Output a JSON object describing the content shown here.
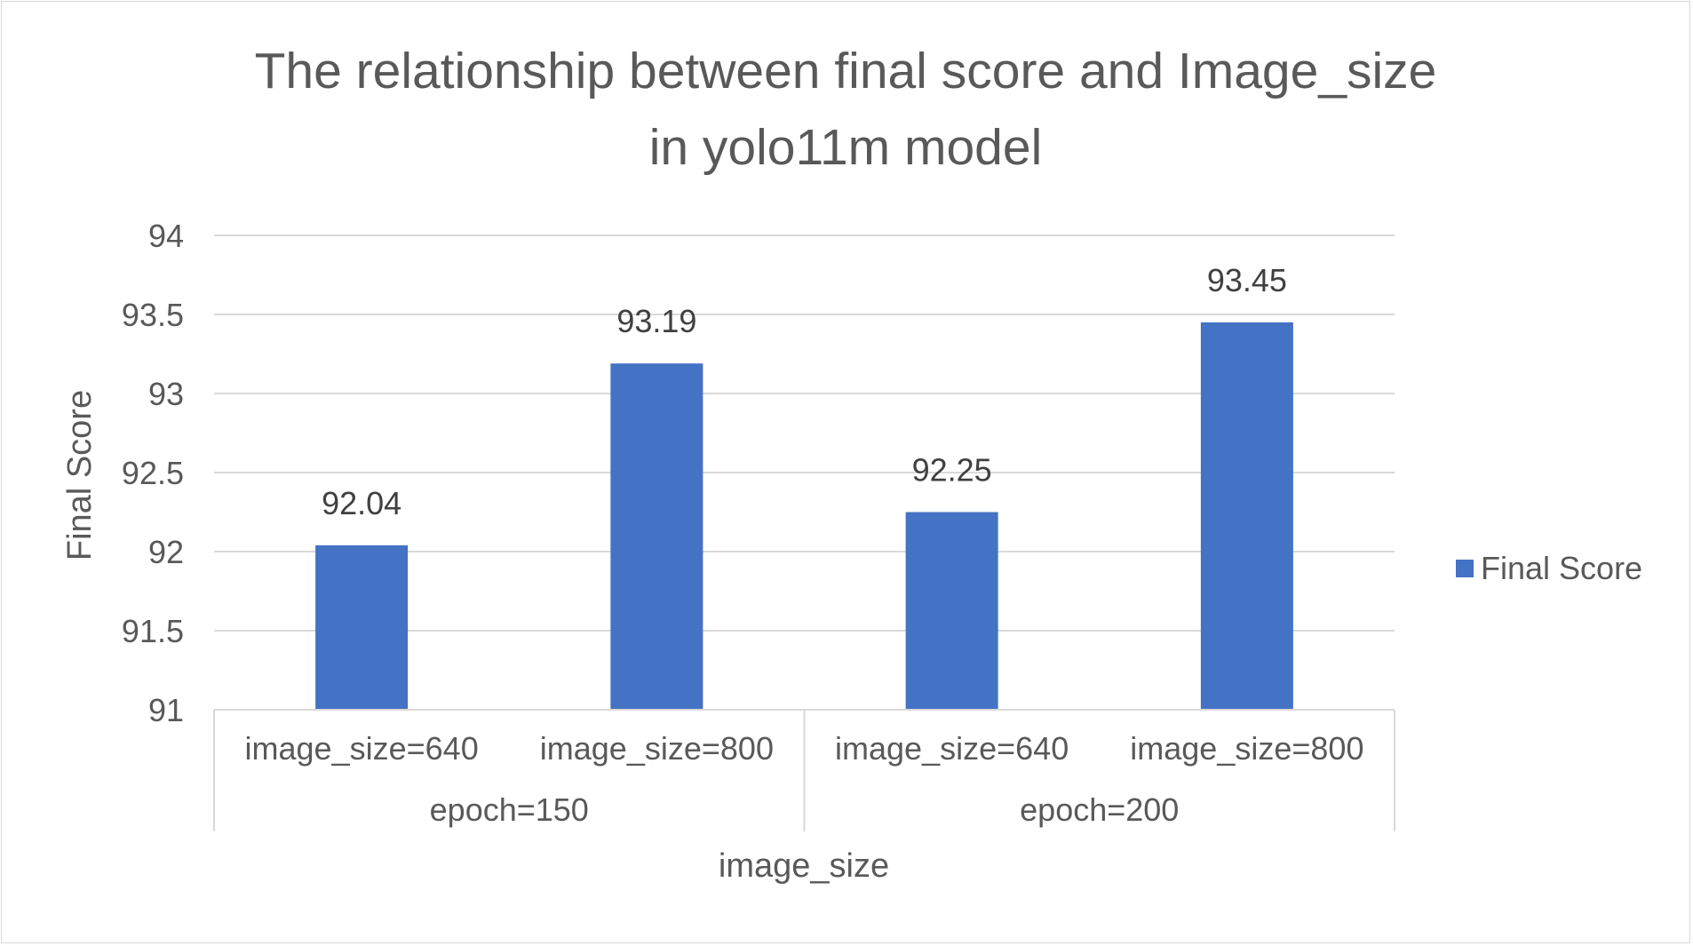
{
  "chart_data": {
    "type": "bar",
    "title": "The relationship between final score and Image_size in yolo11m model",
    "title_lines": [
      "The relationship between final score and Image_size",
      "in yolo11m model"
    ],
    "xlabel": "image_size",
    "ylabel": "Final Score",
    "ylim": [
      91,
      94
    ],
    "yticks": [
      "91",
      "91.5",
      "92",
      "92.5",
      "93",
      "93.5",
      "94"
    ],
    "ytick_values": [
      91,
      91.5,
      92,
      92.5,
      93,
      93.5,
      94
    ],
    "groups": [
      {
        "label": "epoch=150",
        "categories": [
          "image_size=640",
          "image_size=800"
        ]
      },
      {
        "label": "epoch=200",
        "categories": [
          "image_size=640",
          "image_size=800"
        ]
      }
    ],
    "categories": [
      "image_size=640",
      "image_size=800",
      "image_size=640",
      "image_size=800"
    ],
    "series": [
      {
        "name": "Final Score",
        "color": "#4472c4",
        "values": [
          92.04,
          93.19,
          92.25,
          93.45
        ],
        "labels": [
          "92.04",
          "93.19",
          "92.25",
          "93.45"
        ]
      }
    ],
    "grid": true,
    "legend": "right"
  }
}
